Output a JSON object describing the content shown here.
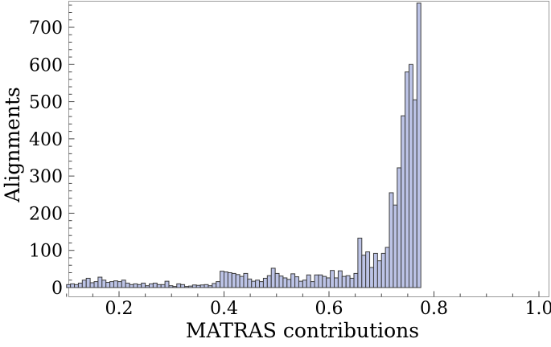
{
  "chart_data": {
    "type": "bar",
    "histogram": true,
    "xlabel": "MATRAS  contributions",
    "ylabel": "Alignments",
    "xlim": [
      0.08,
      1.0
    ],
    "ylim": [
      0,
      780
    ],
    "xticks": [
      "0.2",
      "0.4",
      "0.6",
      "0.8",
      "1.0"
    ],
    "xtick_values": [
      0.2,
      0.4,
      0.6,
      0.8,
      1.0
    ],
    "yticks": [
      "0",
      "100",
      "200",
      "300",
      "400",
      "500",
      "600",
      "700"
    ],
    "ytick_values": [
      0,
      100,
      200,
      300,
      400,
      500,
      600,
      700
    ],
    "bin_width": 0.0075,
    "bin_start": 0.1,
    "values": [
      8,
      10,
      8,
      12,
      20,
      25,
      13,
      16,
      28,
      20,
      14,
      16,
      18,
      16,
      20,
      12,
      8,
      10,
      8,
      12,
      5,
      10,
      12,
      8,
      8,
      17,
      5,
      3,
      10,
      8,
      3,
      4,
      7,
      6,
      7,
      8,
      5,
      11,
      16,
      44,
      42,
      40,
      38,
      35,
      30,
      38,
      23,
      17,
      20,
      16,
      25,
      32,
      52,
      38,
      31,
      26,
      22,
      37,
      29,
      17,
      20,
      34,
      16,
      34,
      34,
      30,
      26,
      46,
      26,
      45,
      30,
      32,
      25,
      38,
      133,
      87,
      96,
      54,
      92,
      72,
      92,
      108,
      255,
      222,
      322,
      462,
      580,
      600,
      505,
      765
    ],
    "bar_color": "#bcc3e6",
    "bar_edge_color": "#3c3c3c"
  }
}
